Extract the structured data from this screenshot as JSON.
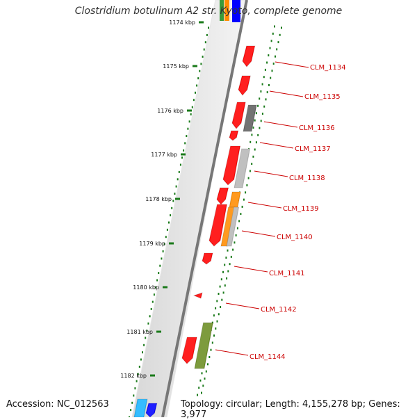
{
  "title": "Clostridium botulinum A2 str. Kyoto, complete genome",
  "footer": {
    "accession": "Accession: NC_012563",
    "summary": "Topology: circular; Length: 4,155,278 bp; Genes: 3,977"
  },
  "scale_labels": [
    "1174 kbp",
    "1175 kbp",
    "1176 kbp",
    "1177 kbp",
    "1178 kbp",
    "1179 kbp",
    "1180 kbp",
    "1181 kbp",
    "1182 kbp"
  ],
  "gene_labels": [
    "CLM_1134",
    "CLM_1135",
    "CLM_1136",
    "CLM_1137",
    "CLM_1138",
    "CLM_1139",
    "CLM_1140",
    "CLM_1141",
    "CLM_1142",
    "CLM_1144"
  ],
  "colors": {
    "cds": "#ff0000",
    "gray_dark": "#606060",
    "gray_light": "#b8b8b8",
    "orange": "#ff8c00",
    "olive": "#6b8e23",
    "blue": "#0000ff",
    "cyan": "#19b4ff",
    "tick_green": "#1a7a1a",
    "label_red": "#cc0000"
  }
}
